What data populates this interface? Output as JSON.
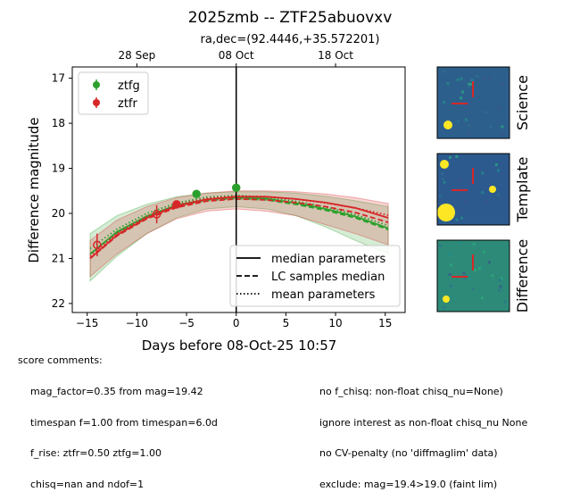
{
  "title": "2025zmb -- ZTF25abuovxv",
  "subtitle": "ra,dec=(92.4446,+35.572201)",
  "chart_data": {
    "type": "scatter",
    "xlabel": "Days before 08-Oct-25 10:57",
    "ylabel": "Difference magnitude",
    "xlim": [
      -16.5,
      17
    ],
    "ylim": [
      22.2,
      16.75
    ],
    "y_inverted": true,
    "x_ticks": [
      -15,
      -10,
      -5,
      0,
      5,
      10,
      15
    ],
    "y_ticks": [
      17,
      18,
      19,
      20,
      21,
      22
    ],
    "top_axis_ticks": [
      {
        "x": -10,
        "label": "28 Sep"
      },
      {
        "x": 0,
        "label": "08 Oct"
      },
      {
        "x": 10,
        "label": "18 Oct"
      }
    ],
    "vline_x": 0,
    "grid": false,
    "legend_upper": {
      "placement": "top-left",
      "entries": [
        "ztfg",
        "ztfr"
      ]
    },
    "legend_lower": {
      "placement": "bottom-right",
      "entries": [
        "median parameters",
        "LC samples median",
        "mean parameters"
      ]
    },
    "series": [
      {
        "name": "ztfg",
        "color": "#2ca02c",
        "points": [
          {
            "x": -4.0,
            "y": 19.57,
            "yerr": 0.07
          },
          {
            "x": 0.0,
            "y": 19.43,
            "yerr": 0.08
          }
        ],
        "median_model": [
          [
            -14.7,
            20.9
          ],
          [
            -12,
            20.41
          ],
          [
            -9,
            20.06
          ],
          [
            -6,
            19.82
          ],
          [
            -3,
            19.69
          ],
          [
            0,
            19.64
          ],
          [
            3,
            19.67
          ],
          [
            6,
            19.77
          ],
          [
            9,
            19.9
          ],
          [
            12,
            20.07
          ],
          [
            15.3,
            20.33
          ]
        ],
        "lc_samples_median": [
          [
            -14.7,
            20.9
          ],
          [
            -12,
            20.43
          ],
          [
            -9,
            20.08
          ],
          [
            -6,
            19.84
          ],
          [
            -3,
            19.71
          ],
          [
            0,
            19.67
          ],
          [
            3,
            19.7
          ],
          [
            6,
            19.8
          ],
          [
            9,
            19.93
          ],
          [
            12,
            20.1
          ],
          [
            15.3,
            20.36
          ]
        ],
        "mean_model": [
          [
            -14.7,
            20.78
          ],
          [
            -12,
            20.35
          ],
          [
            -9,
            20.0
          ],
          [
            -6,
            19.77
          ],
          [
            -3,
            19.64
          ],
          [
            0,
            19.6
          ],
          [
            3,
            19.64
          ],
          [
            6,
            19.73
          ],
          [
            9,
            19.86
          ],
          [
            12,
            20.03
          ],
          [
            15.3,
            20.27
          ]
        ],
        "band_upper": [
          [
            -14.7,
            20.45
          ],
          [
            -12,
            20.05
          ],
          [
            -9,
            19.8
          ],
          [
            -6,
            19.63
          ],
          [
            -3,
            19.55
          ],
          [
            0,
            19.52
          ],
          [
            3,
            19.52
          ],
          [
            6,
            19.55
          ],
          [
            9,
            19.62
          ],
          [
            12,
            19.72
          ],
          [
            15.3,
            19.85
          ]
        ],
        "band_lower": [
          [
            -14.7,
            21.5
          ],
          [
            -12,
            20.95
          ],
          [
            -9,
            20.45
          ],
          [
            -6,
            20.1
          ],
          [
            -3,
            19.9
          ],
          [
            0,
            19.85
          ],
          [
            3,
            19.9
          ],
          [
            6,
            20.05
          ],
          [
            9,
            20.3
          ],
          [
            12,
            20.6
          ],
          [
            15.3,
            20.9
          ]
        ]
      },
      {
        "name": "ztfr",
        "color": "#d62728",
        "points": [
          {
            "x": -14.0,
            "y": 20.7,
            "yerr": 0.25,
            "open": true
          },
          {
            "x": -8.0,
            "y": 20.02,
            "yerr": 0.2,
            "open": true
          },
          {
            "x": -6.0,
            "y": 19.8,
            "yerr": 0.07,
            "open": false
          }
        ],
        "median_model": [
          [
            -14.7,
            21.0
          ],
          [
            -12,
            20.48
          ],
          [
            -9,
            20.1
          ],
          [
            -6,
            19.84
          ],
          [
            -3,
            19.69
          ],
          [
            0,
            19.63
          ],
          [
            3,
            19.63
          ],
          [
            6,
            19.68
          ],
          [
            9,
            19.76
          ],
          [
            12,
            19.88
          ],
          [
            15.3,
            20.1
          ]
        ],
        "lc_samples_median": [
          [
            -14.7,
            21.0
          ],
          [
            -12,
            20.5
          ],
          [
            -9,
            20.12
          ],
          [
            -6,
            19.87
          ],
          [
            -3,
            19.73
          ],
          [
            0,
            19.68
          ],
          [
            3,
            19.7
          ],
          [
            6,
            19.76
          ],
          [
            9,
            19.85
          ],
          [
            12,
            19.98
          ],
          [
            15.3,
            20.2
          ]
        ],
        "mean_model": [
          [
            -14.7,
            20.95
          ],
          [
            -12,
            20.44
          ],
          [
            -9,
            20.07
          ],
          [
            -6,
            19.81
          ],
          [
            -3,
            19.67
          ],
          [
            0,
            19.62
          ],
          [
            3,
            19.63
          ],
          [
            6,
            19.68
          ],
          [
            9,
            19.77
          ],
          [
            12,
            19.88
          ],
          [
            15.3,
            20.04
          ]
        ],
        "band_upper": [
          [
            -14.7,
            20.6
          ],
          [
            -12,
            20.15
          ],
          [
            -9,
            19.85
          ],
          [
            -6,
            19.65
          ],
          [
            -3,
            19.55
          ],
          [
            0,
            19.5
          ],
          [
            3,
            19.5
          ],
          [
            6,
            19.52
          ],
          [
            9,
            19.57
          ],
          [
            12,
            19.65
          ],
          [
            15.3,
            19.78
          ]
        ],
        "band_lower": [
          [
            -14.7,
            21.4
          ],
          [
            -12,
            20.9
          ],
          [
            -9,
            20.45
          ],
          [
            -6,
            20.12
          ],
          [
            -3,
            19.95
          ],
          [
            0,
            19.9
          ],
          [
            3,
            19.95
          ],
          [
            6,
            20.05
          ],
          [
            9,
            20.25
          ],
          [
            12,
            20.45
          ],
          [
            15.3,
            20.7
          ]
        ]
      }
    ]
  },
  "thumbnails": [
    {
      "label": "Science",
      "bg": "#2d5f8c"
    },
    {
      "label": "Template",
      "bg": "#2c5a8e"
    },
    {
      "label": "Difference",
      "bg": "#2e8a78"
    }
  ],
  "comments": {
    "header": "score comments:",
    "left": [
      "mag_factor=0.35 from mag=19.42",
      "timespan f=1.00 from timespan=6.0d",
      "f_rise: ztfr=0.50 ztfg=1.00",
      "chisq=nan and ndof=1"
    ],
    "right": [
      "no f_chisq: non-float chisq_nu=None)",
      "ignore interest as non-float chisq_nu None",
      "no CV-penalty (no 'diffmaglim' data)",
      "exclude: mag=19.4>19.0 (faint lim)"
    ]
  }
}
